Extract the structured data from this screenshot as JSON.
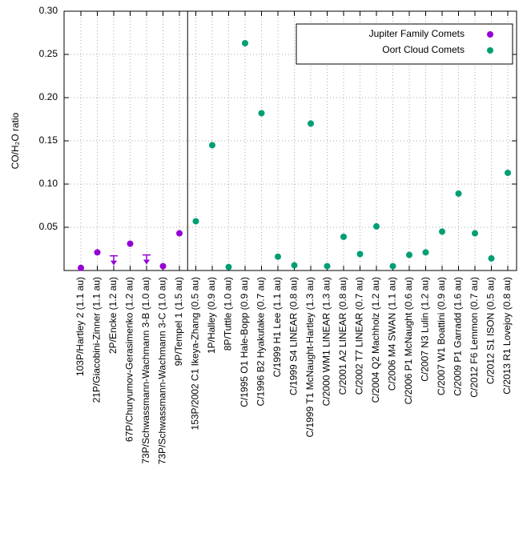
{
  "chart_data": {
    "type": "scatter",
    "ylabel": "CO/H₂O ratio",
    "categories": [
      "103P/Hartley 2 (1.1 au)",
      "21P/Giacobini-Zinner (1.1 au)",
      "2P/Encke (1.2 au)",
      "67P/Churyumov-Gerasimenko (1.2 au)",
      "73P/Schwassmann-Wachmann 3-B (1.0 au)",
      "73P/Schwassmann-Wachmann 3-C (1.0 au)",
      "9P/Tempel 1 (1.5 au)",
      "153P/2002 C1 Ikeya-Zhang (0.5 au)",
      "1P/Halley (0.9 au)",
      "8P/Tuttle (1.0 au)",
      "C/1995 O1 Hale-Bopp (0.9 au)",
      "C/1996 B2 Hyakutake (0.7 au)",
      "C/1999 H1 Lee (1.1 au)",
      "C/1999 S4 LINEAR (0.8 au)",
      "C/1999 T1 McNaught-Hartley (1.3 au)",
      "C/2000 WM1 LINEAR (1.3 au)",
      "C/2001 A2 LINEAR (0.8 au)",
      "C/2002 T7 LINEAR (0.7 au)",
      "C/2004 Q2 Machholz (1.2 au)",
      "C/2006 M4 SWAN (1.1 au)",
      "C/2006 P1 McNaught (0.6 au)",
      "C/2007 N3 Lulin (1.2 au)",
      "C/2007 W1 Boattini (0.9 au)",
      "C/2009 P1 Garradd (1.6 au)",
      "C/2012 F6 Lemmon (0.7 au)",
      "C/2012 S1 ISON (0.5 au)",
      "C/2013 R1 Lovejoy (0.8 au)"
    ],
    "series": [
      {
        "name": "Jupiter Family Comets",
        "color": "#9400d3",
        "values": [
          0.003,
          0.021,
          0.017,
          0.031,
          0.018,
          0.005,
          0.043,
          null,
          null,
          null,
          null,
          null,
          null,
          null,
          null,
          null,
          null,
          null,
          null,
          null,
          null,
          null,
          null,
          null,
          null,
          null,
          null
        ],
        "upper_limit": [
          false,
          false,
          true,
          false,
          true,
          false,
          false,
          false,
          false,
          false,
          false,
          false,
          false,
          false,
          false,
          false,
          false,
          false,
          false,
          false,
          false,
          false,
          false,
          false,
          false,
          false,
          false
        ]
      },
      {
        "name": "Oort Cloud Comets",
        "color": "#009e73",
        "values": [
          null,
          null,
          null,
          null,
          null,
          null,
          null,
          0.057,
          0.145,
          0.004,
          0.263,
          0.182,
          0.016,
          0.006,
          0.17,
          0.005,
          0.039,
          0.019,
          0.051,
          0.005,
          0.018,
          0.021,
          0.045,
          0.089,
          0.043,
          0.014,
          0.113
        ]
      }
    ],
    "ylim": [
      0,
      0.3
    ],
    "yticks": [
      0.05,
      {
        "value": 0.1,
        "label": "0.10"
      },
      0.15,
      {
        "value": 0.2,
        "label": "0.20"
      },
      0.25,
      {
        "value": 0.3,
        "label": "0.30"
      }
    ],
    "grid": true,
    "legend": "top-right"
  }
}
